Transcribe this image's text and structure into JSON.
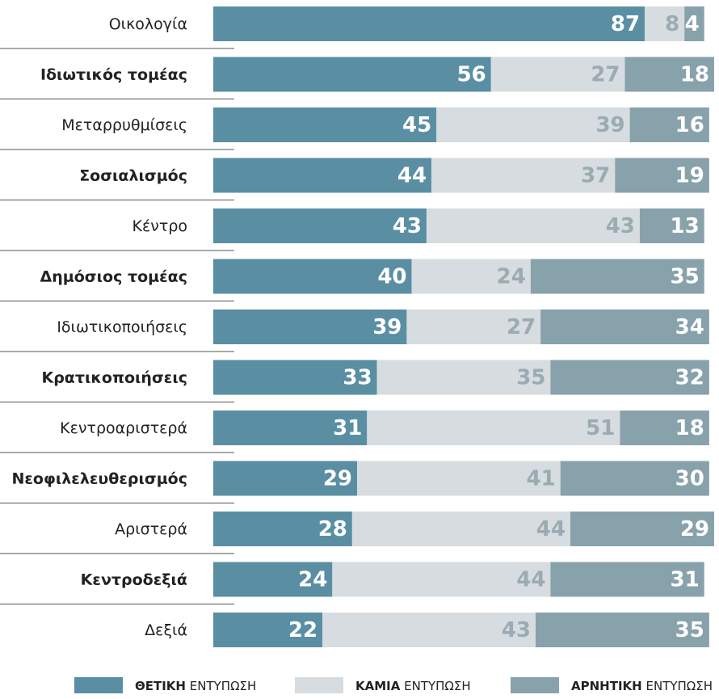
{
  "chart_data": {
    "type": "stacked-bar",
    "categories": [
      "Οικολογία",
      "Ιδιωτικός τομέας",
      "Μεταρρυθμίσεις",
      "Σοσιαλισμός",
      "Κέντρο",
      "Δημόσιος τομέας",
      "Ιδιωτικοποιήσεις",
      "Κρατικοποιήσεις",
      "Κεντροαριστερά",
      "Νεοφιλελευθερισμός",
      "Αριστερά",
      "Κεντροδεξιά",
      "Δεξιά"
    ],
    "series": [
      {
        "name": "ΘΕΤΙΚΗ ΕΝΤΥΠΩΣΗ",
        "color": "#5a8fa3",
        "values": [
          87,
          56,
          45,
          44,
          43,
          40,
          39,
          33,
          31,
          29,
          28,
          24,
          22
        ]
      },
      {
        "name": "ΚΑΜΙΑ ΕΝΤΥΠΩΣΗ",
        "color": "#d6dcdf",
        "values": [
          8,
          27,
          39,
          37,
          43,
          24,
          27,
          35,
          51,
          41,
          44,
          44,
          43
        ]
      },
      {
        "name": "ΑΡΝΗΤΙΚΗ ΕΝΤΥΠΩΣΗ",
        "color": "#88a2ac",
        "values": [
          4,
          18,
          16,
          19,
          13,
          35,
          34,
          32,
          18,
          30,
          29,
          31,
          35
        ]
      }
    ]
  }
}
